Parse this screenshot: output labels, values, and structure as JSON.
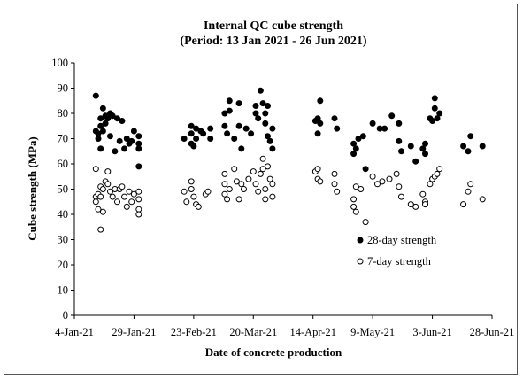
{
  "chart_data": {
    "type": "scatter",
    "title": "Internal QC cube strength",
    "subtitle": "(Period: 13 Jan 2021 - 26 Jun 2021)",
    "xlabel": "Date of concrete production",
    "ylabel": "Cube strength (MPa)",
    "ylim": [
      0,
      100
    ],
    "yticks": [
      "0",
      "10",
      "20",
      "30",
      "40",
      "50",
      "60",
      "70",
      "80",
      "90",
      "100"
    ],
    "xlim": [
      "2021-01-04",
      "2021-06-28"
    ],
    "xticks": [
      "4-Jan-21",
      "29-Jan-21",
      "23-Feb-21",
      "20-Mar-21",
      "14-Apr-21",
      "9-May-21",
      "3-Jun-21",
      "28-Jun-21"
    ],
    "grid": false,
    "legend_position": "lower-right",
    "series": [
      {
        "name": "28-day strength",
        "marker": "filled-circle",
        "color": "#000000",
        "points": [
          {
            "x": "2021-01-13",
            "y": 87
          },
          {
            "x": "2021-01-13",
            "y": 73
          },
          {
            "x": "2021-01-14",
            "y": 72
          },
          {
            "x": "2021-01-14",
            "y": 70
          },
          {
            "x": "2021-01-15",
            "y": 75
          },
          {
            "x": "2021-01-15",
            "y": 78
          },
          {
            "x": "2021-01-15",
            "y": 66
          },
          {
            "x": "2021-01-16",
            "y": 82
          },
          {
            "x": "2021-01-16",
            "y": 73
          },
          {
            "x": "2021-01-17",
            "y": 79
          },
          {
            "x": "2021-01-17",
            "y": 76
          },
          {
            "x": "2021-01-18",
            "y": 78
          },
          {
            "x": "2021-01-19",
            "y": 80
          },
          {
            "x": "2021-01-19",
            "y": 71
          },
          {
            "x": "2021-01-20",
            "y": 79
          },
          {
            "x": "2021-01-21",
            "y": 65
          },
          {
            "x": "2021-01-22",
            "y": 78
          },
          {
            "x": "2021-01-23",
            "y": 69
          },
          {
            "x": "2021-01-24",
            "y": 77
          },
          {
            "x": "2021-01-25",
            "y": 66
          },
          {
            "x": "2021-01-26",
            "y": 70
          },
          {
            "x": "2021-01-27",
            "y": 68
          },
          {
            "x": "2021-01-28",
            "y": 69
          },
          {
            "x": "2021-01-29",
            "y": 73
          },
          {
            "x": "2021-01-31",
            "y": 71
          },
          {
            "x": "2021-01-31",
            "y": 68
          },
          {
            "x": "2021-01-31",
            "y": 66
          },
          {
            "x": "2021-01-31",
            "y": 59
          },
          {
            "x": "2021-02-19",
            "y": 70
          },
          {
            "x": "2021-02-22",
            "y": 75
          },
          {
            "x": "2021-02-22",
            "y": 72
          },
          {
            "x": "2021-02-22",
            "y": 68
          },
          {
            "x": "2021-02-23",
            "y": 67
          },
          {
            "x": "2021-02-24",
            "y": 74
          },
          {
            "x": "2021-02-24",
            "y": 70
          },
          {
            "x": "2021-02-26",
            "y": 73
          },
          {
            "x": "2021-02-27",
            "y": 72
          },
          {
            "x": "2021-03-02",
            "y": 74
          },
          {
            "x": "2021-03-02",
            "y": 70
          },
          {
            "x": "2021-03-08",
            "y": 80
          },
          {
            "x": "2021-03-08",
            "y": 75
          },
          {
            "x": "2021-03-09",
            "y": 72
          },
          {
            "x": "2021-03-10",
            "y": 85
          },
          {
            "x": "2021-03-10",
            "y": 81
          },
          {
            "x": "2021-03-12",
            "y": 70
          },
          {
            "x": "2021-03-14",
            "y": 84
          },
          {
            "x": "2021-03-14",
            "y": 75
          },
          {
            "x": "2021-03-15",
            "y": 66
          },
          {
            "x": "2021-03-17",
            "y": 74
          },
          {
            "x": "2021-03-19",
            "y": 72
          },
          {
            "x": "2021-03-21",
            "y": 83
          },
          {
            "x": "2021-03-21",
            "y": 80
          },
          {
            "x": "2021-03-22",
            "y": 78
          },
          {
            "x": "2021-03-23",
            "y": 89
          },
          {
            "x": "2021-03-24",
            "y": 84
          },
          {
            "x": "2021-03-25",
            "y": 80
          },
          {
            "x": "2021-03-25",
            "y": 76
          },
          {
            "x": "2021-03-26",
            "y": 83
          },
          {
            "x": "2021-03-26",
            "y": 71
          },
          {
            "x": "2021-03-27",
            "y": 69
          },
          {
            "x": "2021-03-28",
            "y": 74
          },
          {
            "x": "2021-03-28",
            "y": 66
          },
          {
            "x": "2021-04-15",
            "y": 77
          },
          {
            "x": "2021-04-16",
            "y": 78
          },
          {
            "x": "2021-04-16",
            "y": 72
          },
          {
            "x": "2021-04-17",
            "y": 76
          },
          {
            "x": "2021-04-17",
            "y": 85
          },
          {
            "x": "2021-04-23",
            "y": 78
          },
          {
            "x": "2021-04-24",
            "y": 74
          },
          {
            "x": "2021-05-01",
            "y": 68
          },
          {
            "x": "2021-05-01",
            "y": 64
          },
          {
            "x": "2021-05-02",
            "y": 66
          },
          {
            "x": "2021-05-03",
            "y": 70
          },
          {
            "x": "2021-05-05",
            "y": 71
          },
          {
            "x": "2021-05-06",
            "y": 58
          },
          {
            "x": "2021-05-09",
            "y": 76
          },
          {
            "x": "2021-05-12",
            "y": 74
          },
          {
            "x": "2021-05-14",
            "y": 74
          },
          {
            "x": "2021-05-17",
            "y": 79
          },
          {
            "x": "2021-05-20",
            "y": 76
          },
          {
            "x": "2021-05-20",
            "y": 69
          },
          {
            "x": "2021-05-21",
            "y": 65
          },
          {
            "x": "2021-05-25",
            "y": 67
          },
          {
            "x": "2021-05-27",
            "y": 61
          },
          {
            "x": "2021-05-30",
            "y": 66
          },
          {
            "x": "2021-05-31",
            "y": 68
          },
          {
            "x": "2021-05-31",
            "y": 64
          },
          {
            "x": "2021-06-02",
            "y": 78
          },
          {
            "x": "2021-06-03",
            "y": 77
          },
          {
            "x": "2021-06-04",
            "y": 86
          },
          {
            "x": "2021-06-04",
            "y": 82
          },
          {
            "x": "2021-06-05",
            "y": 78
          },
          {
            "x": "2021-06-06",
            "y": 80
          },
          {
            "x": "2021-06-16",
            "y": 67
          },
          {
            "x": "2021-06-18",
            "y": 65
          },
          {
            "x": "2021-06-19",
            "y": 71
          },
          {
            "x": "2021-06-24",
            "y": 67
          }
        ]
      },
      {
        "name": "7-day strength",
        "marker": "open-circle",
        "color": "#000000",
        "points": [
          {
            "x": "2021-01-13",
            "y": 47
          },
          {
            "x": "2021-01-13",
            "y": 45
          },
          {
            "x": "2021-01-13",
            "y": 58
          },
          {
            "x": "2021-01-14",
            "y": 48
          },
          {
            "x": "2021-01-14",
            "y": 42
          },
          {
            "x": "2021-01-15",
            "y": 34
          },
          {
            "x": "2021-01-15",
            "y": 51
          },
          {
            "x": "2021-01-15",
            "y": 47
          },
          {
            "x": "2021-01-16",
            "y": 41
          },
          {
            "x": "2021-01-16",
            "y": 50
          },
          {
            "x": "2021-01-17",
            "y": 53
          },
          {
            "x": "2021-01-18",
            "y": 57
          },
          {
            "x": "2021-01-18",
            "y": 52
          },
          {
            "x": "2021-01-19",
            "y": 49
          },
          {
            "x": "2021-01-20",
            "y": 47
          },
          {
            "x": "2021-01-21",
            "y": 50
          },
          {
            "x": "2021-01-22",
            "y": 45
          },
          {
            "x": "2021-01-23",
            "y": 50
          },
          {
            "x": "2021-01-24",
            "y": 51
          },
          {
            "x": "2021-01-25",
            "y": 47
          },
          {
            "x": "2021-01-26",
            "y": 43
          },
          {
            "x": "2021-01-27",
            "y": 49
          },
          {
            "x": "2021-01-28",
            "y": 45
          },
          {
            "x": "2021-01-29",
            "y": 48
          },
          {
            "x": "2021-01-31",
            "y": 49
          },
          {
            "x": "2021-01-31",
            "y": 46
          },
          {
            "x": "2021-01-31",
            "y": 42
          },
          {
            "x": "2021-01-31",
            "y": 40
          },
          {
            "x": "2021-02-19",
            "y": 49
          },
          {
            "x": "2021-02-20",
            "y": 45
          },
          {
            "x": "2021-02-22",
            "y": 53
          },
          {
            "x": "2021-02-22",
            "y": 50
          },
          {
            "x": "2021-02-23",
            "y": 47
          },
          {
            "x": "2021-02-24",
            "y": 44
          },
          {
            "x": "2021-02-25",
            "y": 43
          },
          {
            "x": "2021-02-28",
            "y": 48
          },
          {
            "x": "2021-03-01",
            "y": 49
          },
          {
            "x": "2021-03-08",
            "y": 56
          },
          {
            "x": "2021-03-08",
            "y": 52
          },
          {
            "x": "2021-03-08",
            "y": 48
          },
          {
            "x": "2021-03-09",
            "y": 46
          },
          {
            "x": "2021-03-10",
            "y": 50
          },
          {
            "x": "2021-03-12",
            "y": 58
          },
          {
            "x": "2021-03-13",
            "y": 53
          },
          {
            "x": "2021-03-14",
            "y": 46
          },
          {
            "x": "2021-03-15",
            "y": 52
          },
          {
            "x": "2021-03-16",
            "y": 50
          },
          {
            "x": "2021-03-18",
            "y": 54
          },
          {
            "x": "2021-03-20",
            "y": 57
          },
          {
            "x": "2021-03-21",
            "y": 52
          },
          {
            "x": "2021-03-22",
            "y": 49
          },
          {
            "x": "2021-03-23",
            "y": 56
          },
          {
            "x": "2021-03-24",
            "y": 58
          },
          {
            "x": "2021-03-24",
            "y": 62
          },
          {
            "x": "2021-03-25",
            "y": 50
          },
          {
            "x": "2021-03-25",
            "y": 46
          },
          {
            "x": "2021-03-26",
            "y": 59
          },
          {
            "x": "2021-03-27",
            "y": 54
          },
          {
            "x": "2021-03-28",
            "y": 52
          },
          {
            "x": "2021-03-28",
            "y": 47
          },
          {
            "x": "2021-04-15",
            "y": 57
          },
          {
            "x": "2021-04-16",
            "y": 54
          },
          {
            "x": "2021-04-16",
            "y": 58
          },
          {
            "x": "2021-04-17",
            "y": 53
          },
          {
            "x": "2021-04-23",
            "y": 56
          },
          {
            "x": "2021-04-23",
            "y": 52
          },
          {
            "x": "2021-04-24",
            "y": 49
          },
          {
            "x": "2021-05-01",
            "y": 46
          },
          {
            "x": "2021-05-01",
            "y": 43
          },
          {
            "x": "2021-05-02",
            "y": 41
          },
          {
            "x": "2021-05-02",
            "y": 51
          },
          {
            "x": "2021-05-04",
            "y": 50
          },
          {
            "x": "2021-05-06",
            "y": 37
          },
          {
            "x": "2021-05-09",
            "y": 55
          },
          {
            "x": "2021-05-11",
            "y": 52
          },
          {
            "x": "2021-05-13",
            "y": 53
          },
          {
            "x": "2021-05-16",
            "y": 54
          },
          {
            "x": "2021-05-19",
            "y": 56
          },
          {
            "x": "2021-05-20",
            "y": 51
          },
          {
            "x": "2021-05-21",
            "y": 47
          },
          {
            "x": "2021-05-25",
            "y": 44
          },
          {
            "x": "2021-05-27",
            "y": 43
          },
          {
            "x": "2021-05-30",
            "y": 48
          },
          {
            "x": "2021-05-31",
            "y": 45
          },
          {
            "x": "2021-05-31",
            "y": 44
          },
          {
            "x": "2021-06-02",
            "y": 52
          },
          {
            "x": "2021-06-03",
            "y": 54
          },
          {
            "x": "2021-06-04",
            "y": 55
          },
          {
            "x": "2021-06-05",
            "y": 56
          },
          {
            "x": "2021-06-06",
            "y": 58
          },
          {
            "x": "2021-06-16",
            "y": 44
          },
          {
            "x": "2021-06-18",
            "y": 49
          },
          {
            "x": "2021-06-19",
            "y": 52
          },
          {
            "x": "2021-06-24",
            "y": 46
          }
        ]
      }
    ]
  }
}
